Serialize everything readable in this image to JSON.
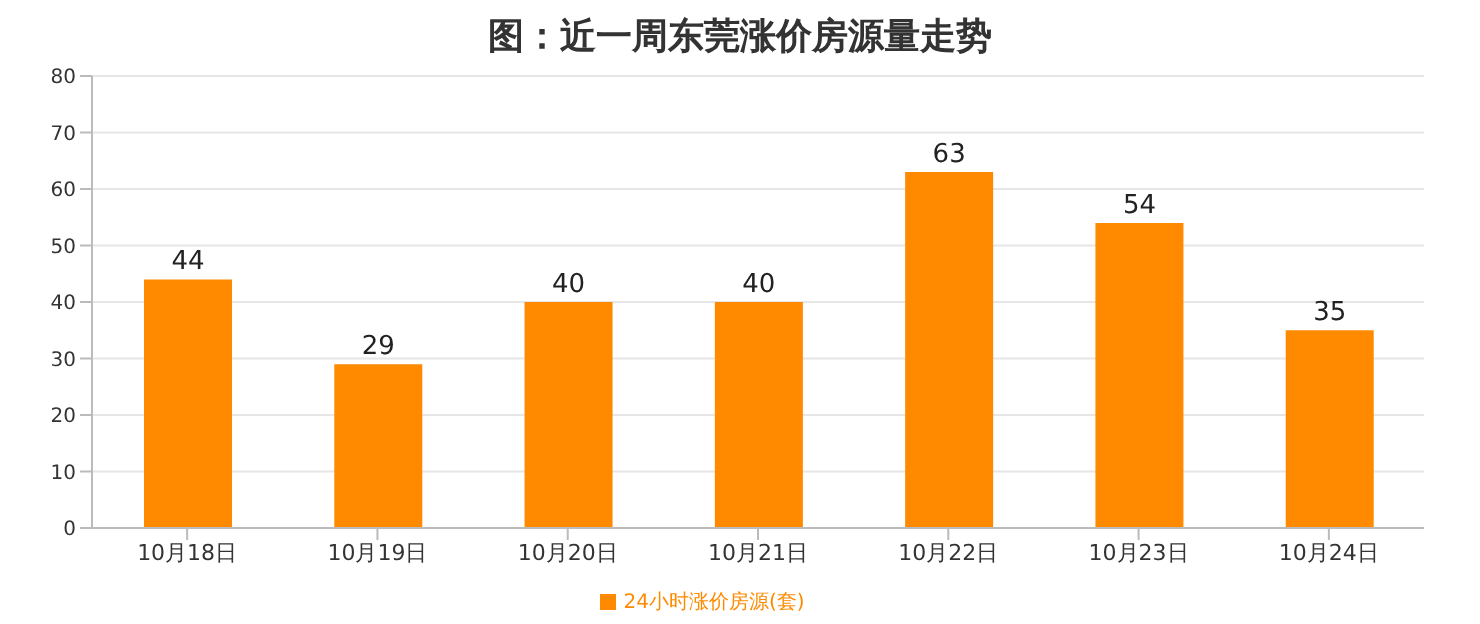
{
  "chart_data": {
    "type": "bar",
    "title": "图：近一周东莞涨价房源量走势",
    "categories": [
      "10月18日",
      "10月19日",
      "10月20日",
      "10月21日",
      "10月22日",
      "10月23日",
      "10月24日"
    ],
    "series": [
      {
        "name": "24小时涨价房源(套)",
        "color": "#ff8a00",
        "values": [
          44,
          29,
          40,
          40,
          63,
          54,
          35
        ]
      }
    ],
    "ylim": [
      0,
      80
    ],
    "yticks": [
      0,
      10,
      20,
      30,
      40,
      50,
      60,
      70,
      80
    ],
    "grid": "y",
    "legend": "bottom",
    "data_labels": true
  }
}
